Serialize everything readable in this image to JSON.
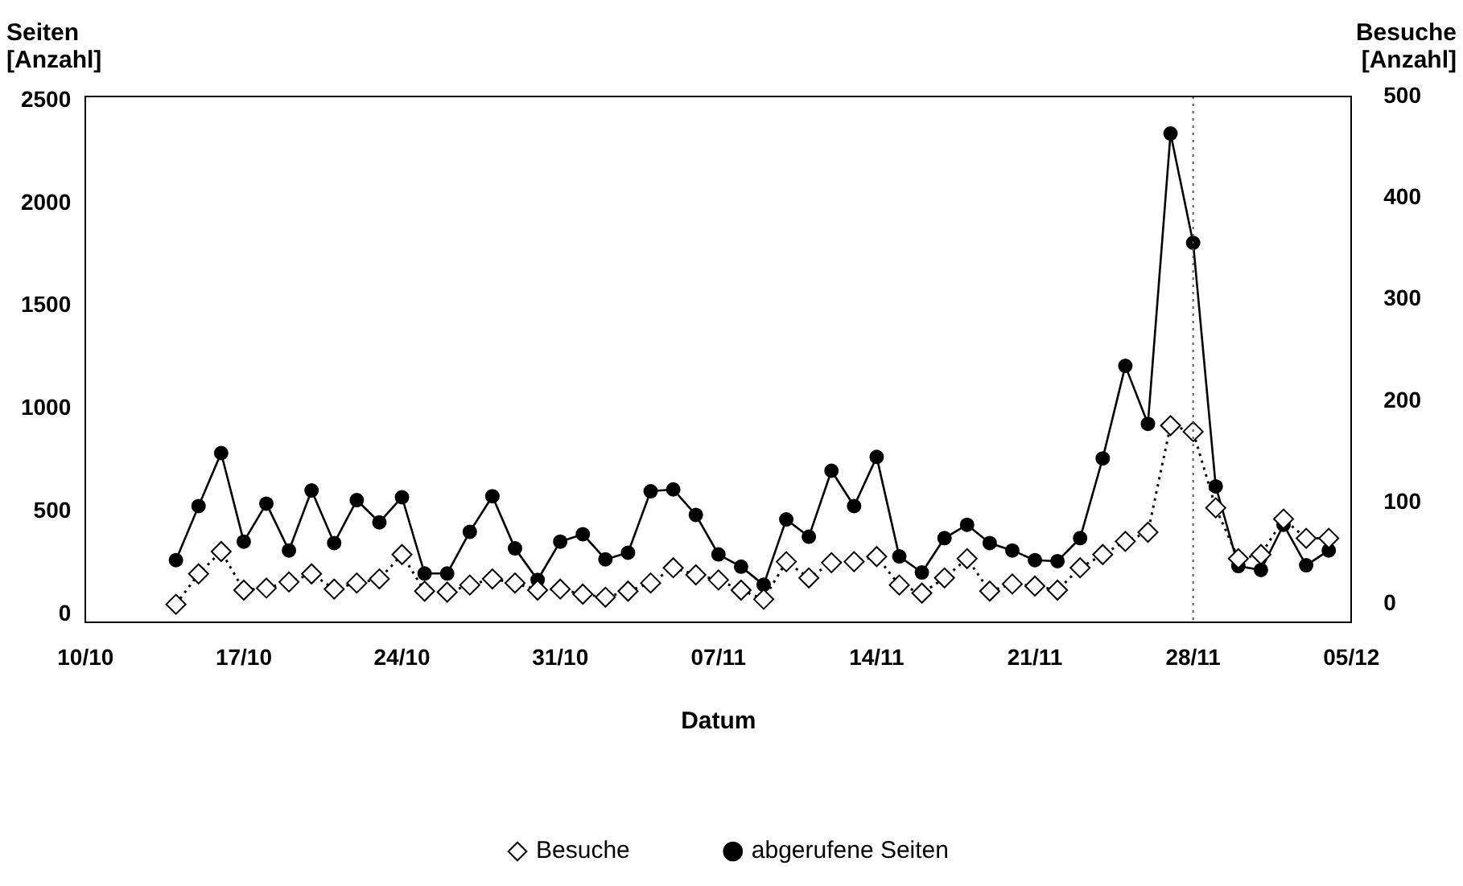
{
  "chart_data": {
    "type": "line",
    "xlabel": "Datum",
    "ylabel": "Seiten [Anzahl]",
    "y2label": "Besuche [Anzahl]",
    "x": [
      "--10-14",
      "--10-15",
      "--10-16",
      "--10-17",
      "--10-18",
      "--10-19",
      "--10-20",
      "--10-21",
      "--10-22",
      "--10-23",
      "--10-24",
      "--10-25",
      "--10-26",
      "--10-27",
      "--10-28",
      "--10-29",
      "--10-30",
      "--10-31",
      "--11-01",
      "--11-02",
      "--11-03",
      "--11-04",
      "--11-05",
      "--11-06",
      "--11-07",
      "--11-08",
      "--11-09",
      "--11-10",
      "--11-11",
      "--11-12",
      "--11-13",
      "--11-14",
      "--11-15",
      "--11-16",
      "--11-17",
      "--11-18",
      "--11-19",
      "--11-20",
      "--11-21",
      "--11-22",
      "--11-23",
      "--11-24",
      "--11-25",
      "--11-26",
      "--11-27",
      "--11-28",
      "--11-29",
      "--11-30",
      "--12-01",
      "--12-02",
      "--12-03",
      "--12-04"
    ],
    "series": [
      {
        "name": "abgerufene Seiten",
        "color": "#000000",
        "marker": "circle",
        "line_style": "solid",
        "values": [
          264,
          527,
          785,
          354,
          539,
          311,
          603,
          347,
          556,
          448,
          570,
          199,
          199,
          402,
          575,
          321,
          168,
          354,
          390,
          268,
          300,
          599,
          608,
          484,
          292,
          232,
          144,
          462,
          378,
          699,
          527,
          766,
          282,
          204,
          371,
          436,
          347,
          311,
          264,
          259,
          371,
          759,
          1209,
          927,
          2340,
          1808,
          623,
          235,
          216,
          436,
          239,
          311
        ]
      },
      {
        "name": "Besuche",
        "color": "#000000",
        "marker": "diamond",
        "line_style": "dotted",
        "axis": "y2",
        "values": [
          0,
          30,
          52,
          14,
          16,
          22,
          30,
          15,
          21,
          25,
          49,
          13,
          12,
          19,
          25,
          21,
          14,
          15,
          10,
          7,
          13,
          21,
          36,
          29,
          24,
          14,
          5,
          42,
          26,
          41,
          42,
          47,
          19,
          11,
          26,
          45,
          13,
          20,
          18,
          14,
          36,
          49,
          62,
          71,
          176,
          170,
          95,
          45,
          49,
          84,
          65,
          65
        ]
      }
    ],
    "xlim": [
      "--10-10",
      "--12-05"
    ],
    "xticks": [
      {
        "value": "--10-10",
        "label": "10/10"
      },
      {
        "value": "--10-17",
        "label": "17/10"
      },
      {
        "value": "--10-24",
        "label": "24/10"
      },
      {
        "value": "--10-31",
        "label": "31/10"
      },
      {
        "value": "--11-07",
        "label": "07/11"
      },
      {
        "value": "--11-14",
        "label": "14/11"
      },
      {
        "value": "--11-21",
        "label": "21/11"
      },
      {
        "value": "--11-28",
        "label": "28/11"
      },
      {
        "value": "--12-05",
        "label": "05/12"
      }
    ],
    "ylim": [
      -40,
      2520
    ],
    "yticks": [
      0,
      500,
      1000,
      1500,
      2000,
      2500
    ],
    "y2lim": [
      -18,
      500
    ],
    "y2ticks": [
      0,
      100,
      200,
      300,
      400,
      500
    ],
    "ref_lines": [
      {
        "axis": "x",
        "value": "--11-28",
        "line_style": "dotted",
        "color": "#555555"
      }
    ],
    "grid": false,
    "legend": "bottom"
  }
}
